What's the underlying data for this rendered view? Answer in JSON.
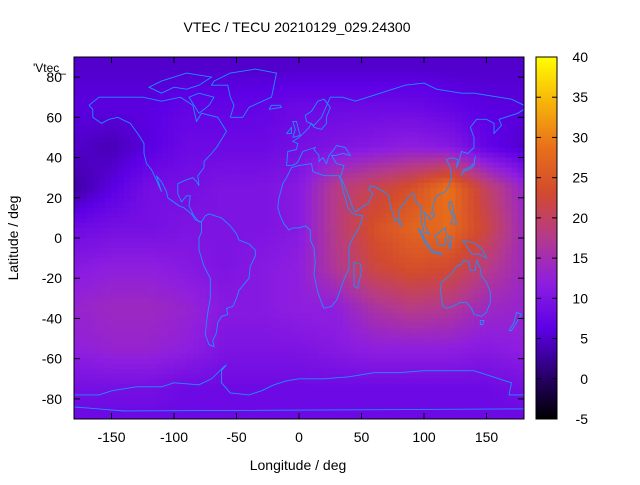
{
  "title": "VTEC / TECU 20210129_029.24300",
  "key_label": "'Vtec_",
  "x_axis": {
    "label": "Longitude / deg",
    "range": [
      -180,
      180
    ],
    "ticks": [
      -150,
      -100,
      -50,
      0,
      50,
      100,
      150
    ]
  },
  "y_axis": {
    "label": "Latitude / deg",
    "range": [
      -90,
      90
    ],
    "ticks": [
      -80,
      -60,
      -40,
      -20,
      0,
      20,
      40,
      60,
      80
    ]
  },
  "colorbar": {
    "range": [
      -5,
      40
    ],
    "ticks": [
      -5,
      0,
      5,
      10,
      15,
      20,
      25,
      30,
      35,
      40
    ],
    "palette": [
      "#000000",
      "#2a0070",
      "#5d00e6",
      "#8e1ee0",
      "#b43a8c",
      "#d24a2e",
      "#e8701a",
      "#f7b40a",
      "#ffff00"
    ]
  },
  "coastline_color": "#1e90ff",
  "chart_data": {
    "type": "heatmap",
    "x": [
      -180,
      -150,
      -120,
      -90,
      -60,
      -30,
      0,
      30,
      60,
      90,
      120,
      150,
      180
    ],
    "y": [
      85,
      65,
      45,
      25,
      5,
      -15,
      -35,
      -55,
      -75,
      -88
    ],
    "values": [
      [
        5,
        5,
        5,
        5,
        5,
        5,
        5,
        5,
        5,
        5,
        5,
        5,
        5
      ],
      [
        6,
        6,
        6,
        7,
        7,
        7,
        8,
        8,
        8,
        8,
        7,
        6,
        6
      ],
      [
        5,
        4,
        6,
        8,
        8,
        8,
        9,
        10,
        11,
        12,
        11,
        7,
        5
      ],
      [
        3,
        6,
        9,
        9,
        10,
        10,
        11,
        18,
        21,
        24,
        29,
        20,
        13
      ],
      [
        8,
        9,
        9,
        10,
        10,
        10,
        11,
        18,
        24,
        27,
        28,
        22,
        14
      ],
      [
        11,
        12,
        12,
        11,
        10,
        11,
        12,
        17,
        22,
        24,
        23,
        18,
        14
      ],
      [
        13,
        14,
        14,
        13,
        11,
        11,
        12,
        12,
        16,
        18,
        17,
        14,
        13
      ],
      [
        12,
        13,
        13,
        12,
        10,
        10,
        10,
        11,
        12,
        12,
        12,
        11,
        12
      ],
      [
        9,
        9,
        9,
        8,
        8,
        8,
        8,
        8,
        8,
        8,
        8,
        8,
        9
      ],
      [
        8,
        8,
        8,
        8,
        8,
        8,
        8,
        8,
        8,
        8,
        8,
        8,
        8
      ]
    ],
    "title": "VTEC / TECU 20210129_029.24300",
    "xlabel": "Longitude / deg",
    "ylabel": "Latitude / deg",
    "xlim": [
      -180,
      180
    ],
    "ylim": [
      -90,
      90
    ],
    "zlim": [
      -5,
      40
    ]
  }
}
